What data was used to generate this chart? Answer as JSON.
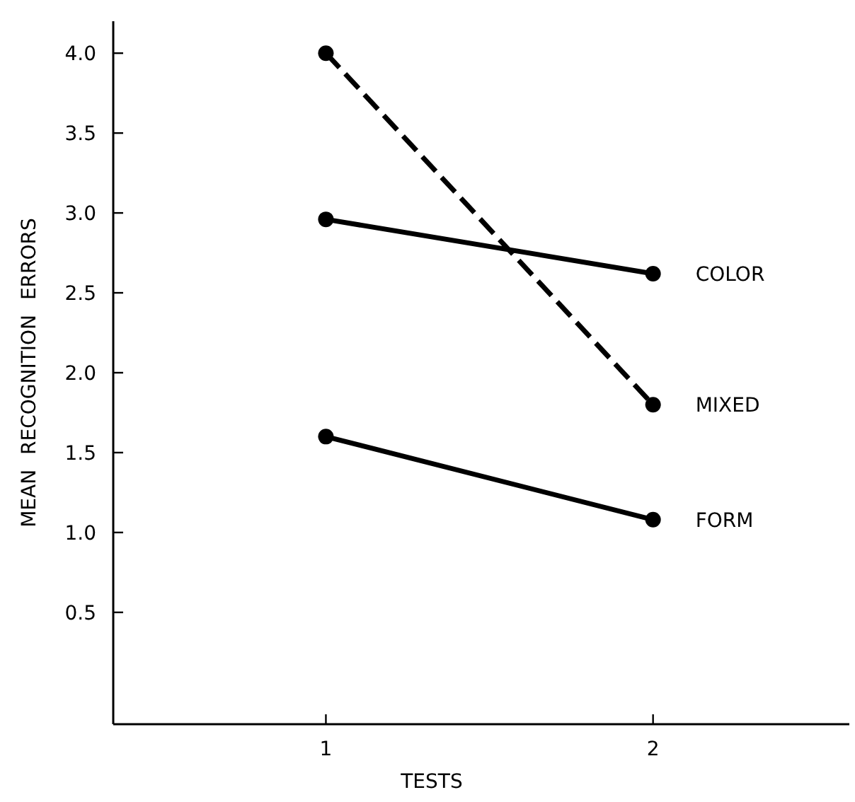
{
  "chart_data": {
    "type": "line",
    "xlabel": "TESTS",
    "ylabel": "MEAN RECOGNITION ERRORS",
    "x": [
      1,
      2
    ],
    "xlim": [
      0.35,
      2.6
    ],
    "xticks": [
      1,
      2
    ],
    "ylim": [
      -0.2,
      4.2
    ],
    "yticks": [
      {
        "value": 0.5,
        "label": "0.5"
      },
      {
        "value": 1,
        "label": "1.0"
      },
      {
        "value": 1.5,
        "label": "1.5"
      },
      {
        "value": 2,
        "label": "2.0"
      },
      {
        "value": 2.5,
        "label": "2.5"
      },
      {
        "value": 3,
        "label": "3.0"
      },
      {
        "value": 3.5,
        "label": "3.5"
      },
      {
        "value": 4,
        "label": "4.0"
      }
    ],
    "grid": false,
    "marker": "circle",
    "series": [
      {
        "name": "COLOR",
        "color": "#000000",
        "values": [
          2.96,
          2.62
        ],
        "line_style": "solid"
      },
      {
        "name": "MIXED",
        "color": "#000000",
        "values": [
          4.0,
          1.8
        ],
        "line_style": "dashed"
      },
      {
        "name": "FORM",
        "color": "#000000",
        "values": [
          1.6,
          1.08
        ],
        "line_style": "solid"
      }
    ]
  }
}
